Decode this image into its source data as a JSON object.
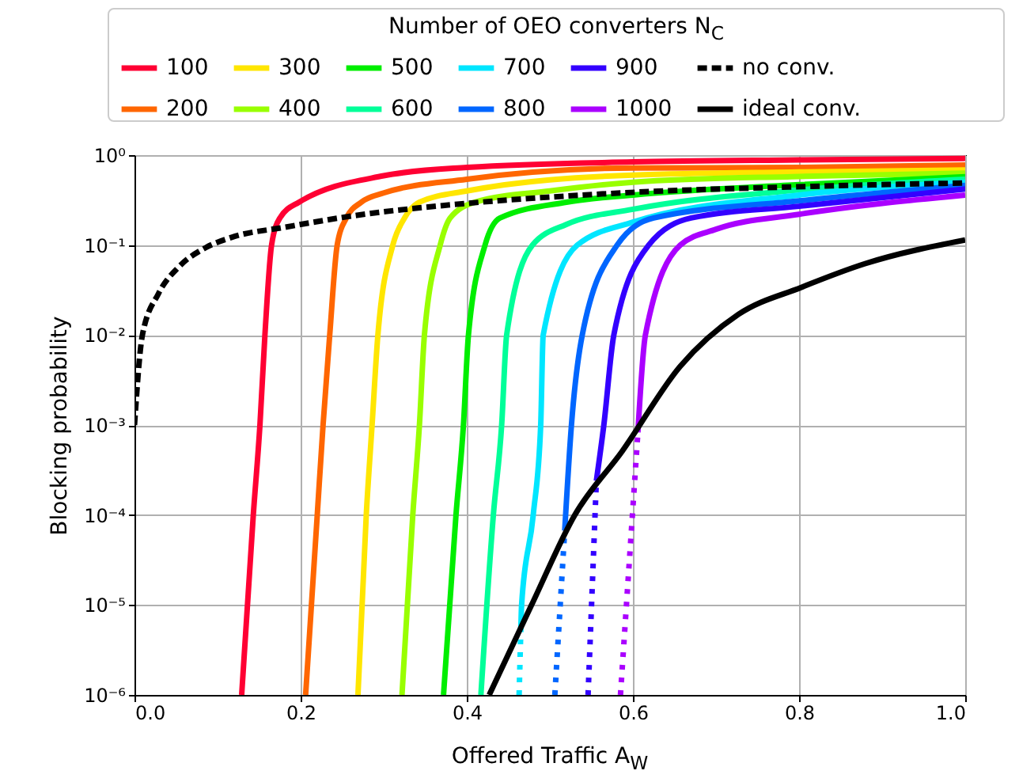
{
  "chart_data": {
    "type": "line",
    "xlabel": "Offered Traffic A$_{W}$",
    "ylabel": "Blocking probability",
    "legend_title": "Number of OEO converters N$_{C}$",
    "legend": "top",
    "grid": true,
    "log": "y",
    "xlim": [
      0,
      1
    ],
    "ylim": [
      1e-06,
      1
    ],
    "xticks": [
      {
        "value": 0,
        "label": "0.0"
      },
      {
        "value": 0.2,
        "label": "0.2"
      },
      {
        "value": 0.4,
        "label": "0.4"
      },
      {
        "value": 0.6,
        "label": "0.6"
      },
      {
        "value": 0.8,
        "label": "0.8"
      },
      {
        "value": 1,
        "label": "1.0"
      }
    ],
    "yticks": [
      {
        "value": 1e-06,
        "label": "10⁻⁶"
      },
      {
        "value": 1e-05,
        "label": "10⁻⁵"
      },
      {
        "value": 0.0001,
        "label": "10⁻⁴"
      },
      {
        "value": 0.001,
        "label": "10⁻³"
      },
      {
        "value": 0.01,
        "label": "10⁻²"
      },
      {
        "value": 0.1,
        "label": "10⁻¹"
      },
      {
        "value": 1,
        "label": "10⁰"
      }
    ],
    "series": [
      {
        "name": "100",
        "color": "#ff0033",
        "line_style": "solid",
        "x": [
          0.129,
          0.143,
          0.151,
          0.157,
          0.165,
          0.175,
          0.198,
          0.3,
          0.4,
          0.6,
          0.8,
          1
        ],
        "values": [
          1e-06,
          0.0001,
          0.001,
          0.01,
          0.1,
          0.2,
          0.3,
          0.59,
          0.73,
          0.84,
          0.885,
          0.92
        ]
      },
      {
        "name": "200",
        "color": "#ff6600",
        "line_style": "solid",
        "x": [
          0.206,
          0.22,
          0.227,
          0.235,
          0.244,
          0.255,
          0.273,
          0.3,
          0.4,
          0.6,
          0.8,
          1
        ],
        "values": [
          1e-06,
          0.0001,
          0.001,
          0.01,
          0.1,
          0.2,
          0.3,
          0.38,
          0.54,
          0.72,
          0.73,
          0.775
        ]
      },
      {
        "name": "300",
        "color": "#ffe600",
        "line_style": "solid",
        "x": [
          0.269,
          0.279,
          0.286,
          0.293,
          0.311,
          0.325,
          0.343,
          0.4,
          0.6,
          0.8,
          1
        ],
        "values": [
          1e-06,
          0.0001,
          0.001,
          0.01,
          0.1,
          0.2,
          0.3,
          0.4,
          0.6,
          0.65,
          0.685
        ]
      },
      {
        "name": "400",
        "color": "#99ff00",
        "line_style": "solid",
        "x": [
          0.322,
          0.335,
          0.343,
          0.349,
          0.368,
          0.38,
          0.41,
          0.5,
          0.6,
          0.8,
          1
        ],
        "values": [
          1e-06,
          0.0001,
          0.001,
          0.01,
          0.1,
          0.2,
          0.3,
          0.4,
          0.5,
          0.58,
          0.63
        ]
      },
      {
        "name": "500",
        "color": "#00ee00",
        "line_style": "solid",
        "x": [
          0.372,
          0.387,
          0.396,
          0.402,
          0.422,
          0.44,
          0.52,
          0.6,
          0.8,
          1
        ],
        "values": [
          1e-06,
          0.0001,
          0.001,
          0.01,
          0.1,
          0.2,
          0.3,
          0.36,
          0.47,
          0.575
        ]
      },
      {
        "name": "600",
        "color": "#00ff99",
        "line_style": "solid",
        "x": [
          0.417,
          0.432,
          0.442,
          0.448,
          0.479,
          0.52,
          0.6,
          0.8,
          1
        ],
        "values": [
          1e-06,
          0.0001,
          0.001,
          0.01,
          0.1,
          0.17,
          0.25,
          0.41,
          0.54
        ]
      },
      {
        "name": "700",
        "color": "#00e6ff",
        "line_style": "solid",
        "x": [
          0.465,
          0.466,
          0.48,
          0.489,
          0.492,
          0.533,
          0.6,
          0.8,
          1
        ],
        "values": [
          5e-06,
          1e-05,
          0.0001,
          0.001,
          0.01,
          0.1,
          0.18,
          0.36,
          0.5
        ]
      },
      {
        "name": "800",
        "color": "#0066ff",
        "line_style": "solid",
        "x": [
          0.518,
          0.526,
          0.539,
          0.581,
          0.625,
          0.8,
          1
        ],
        "values": [
          7e-05,
          0.001,
          0.01,
          0.1,
          0.2,
          0.31,
          0.46
        ]
      },
      {
        "name": "900",
        "color": "#3300ff",
        "line_style": "solid",
        "x": [
          0.556,
          0.565,
          0.577,
          0.619,
          0.67,
          0.8,
          1
        ],
        "values": [
          0.00024,
          0.001,
          0.01,
          0.1,
          0.2,
          0.27,
          0.42
        ]
      },
      {
        "name": "1000",
        "color": "#aa00ff",
        "line_style": "solid",
        "x": [
          0.606,
          0.615,
          0.657,
          0.7,
          0.8,
          1
        ],
        "values": [
          0.00083,
          0.01,
          0.1,
          0.15,
          0.22,
          0.36
        ]
      },
      {
        "color": "#00e6ff",
        "line_style": "dotted",
        "x": [
          0.463,
          0.465
        ],
        "values": [
          1e-06,
          5e-06
        ]
      },
      {
        "color": "#0066ff",
        "line_style": "dotted",
        "x": [
          0.506,
          0.518
        ],
        "values": [
          1e-06,
          7e-05
        ]
      },
      {
        "color": "#3300ff",
        "line_style": "dotted",
        "x": [
          0.546,
          0.556
        ],
        "values": [
          1e-06,
          0.00024
        ]
      },
      {
        "color": "#aa00ff",
        "line_style": "dotted",
        "x": [
          0.585,
          0.606
        ],
        "values": [
          1e-06,
          0.00083
        ]
      },
      {
        "name": "no conv.",
        "color": "#000000",
        "line_style": "dashed",
        "x": [
          0,
          0.0095,
          0.029,
          0.054,
          0.086,
          0.117,
          0.181,
          0.276,
          0.371,
          0.562,
          0.816,
          1
        ],
        "values": [
          0.001,
          0.01,
          0.029,
          0.058,
          0.094,
          0.122,
          0.158,
          0.22,
          0.275,
          0.37,
          0.45,
          0.49
        ]
      },
      {
        "name": "ideal conv.",
        "color": "#000000",
        "line_style": "solid",
        "x": [
          0.427,
          0.478,
          0.53,
          0.587,
          0.657,
          0.727,
          0.803,
          0.879,
          1
        ],
        "values": [
          1e-06,
          1e-05,
          0.0001,
          0.00051,
          0.0045,
          0.017,
          0.034,
          0.062,
          0.114
        ]
      }
    ]
  }
}
